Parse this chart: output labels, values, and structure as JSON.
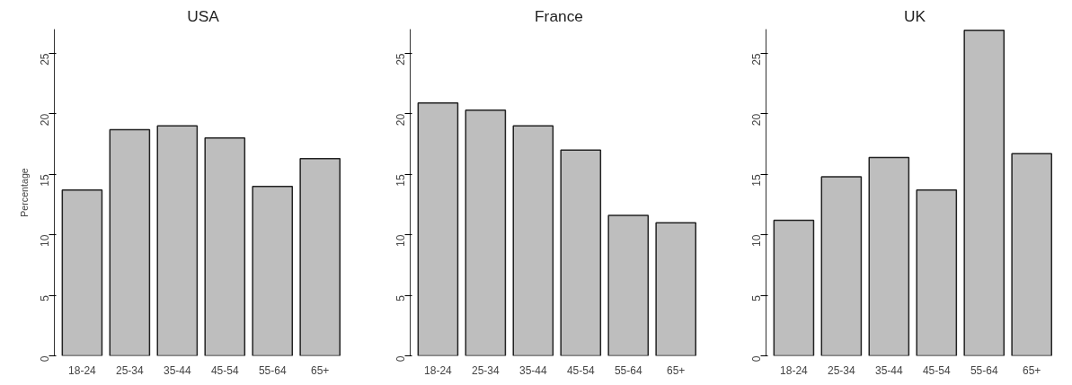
{
  "chart_data": [
    {
      "type": "bar",
      "title": "USA",
      "ylabel": "Percentage",
      "categories": [
        "18-24",
        "25-34",
        "35-44",
        "45-54",
        "55-64",
        "65+"
      ],
      "values": [
        13.7,
        18.7,
        19.0,
        18.0,
        14.0,
        16.3
      ],
      "color": "#bebebe",
      "ylim": [
        0,
        27
      ],
      "yticks": [
        0,
        5,
        10,
        15,
        20,
        25
      ],
      "grid": false
    },
    {
      "type": "bar",
      "title": "France",
      "categories": [
        "18-24",
        "25-34",
        "35-44",
        "45-54",
        "55-64",
        "65+"
      ],
      "values": [
        20.9,
        20.3,
        19.0,
        17.0,
        11.6,
        11.0
      ],
      "color": "#bebebe",
      "ylim": [
        0,
        27
      ],
      "yticks": [
        0,
        5,
        10,
        15,
        20,
        25
      ],
      "grid": false
    },
    {
      "type": "bar",
      "title": "UK",
      "categories": [
        "18-24",
        "25-34",
        "35-44",
        "45-54",
        "55-64",
        "65+"
      ],
      "values": [
        11.2,
        14.8,
        16.4,
        13.7,
        26.9,
        16.7
      ],
      "color": "#bebebe",
      "ylim": [
        0,
        27
      ],
      "yticks": [
        0,
        5,
        10,
        15,
        20,
        25
      ],
      "grid": false
    }
  ]
}
